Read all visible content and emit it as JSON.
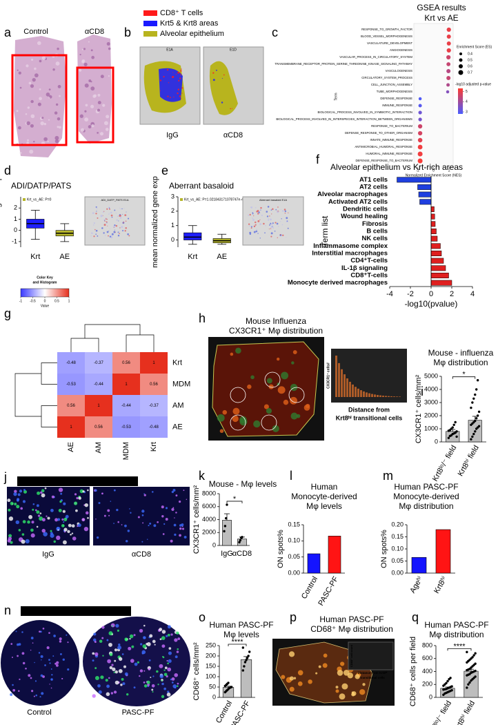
{
  "figure": {
    "a": {
      "letter": "a",
      "captions": [
        "Control",
        "αCD8"
      ]
    },
    "b": {
      "letter": "b",
      "legend": [
        {
          "name": "CD8⁺ T cells",
          "color": "#ff1a1a"
        },
        {
          "name": "Krt5 & Krt8 areas",
          "color": "#1a1aff"
        },
        {
          "name": "Alveolar epithelium",
          "color": "#b8b41e"
        }
      ],
      "tags": [
        "E1A",
        "E1D"
      ],
      "captions": [
        "IgG",
        "αCD8"
      ]
    },
    "h": {
      "letter": "h",
      "title": [
        "Mouse Influenza",
        "CX3CR1⁺ Mφ distribution"
      ],
      "inset_ylabel": "CX3CR1⁺ cells#",
      "inset_xlabel": [
        "Distance from",
        "Krt8ʰⁱ transitional cells"
      ]
    },
    "j": {
      "letter": "j",
      "stains": [
        {
          "name": "DAPI",
          "color": "#3b6cff"
        },
        {
          "name": "KRT8",
          "color": "#c86cff"
        },
        {
          "name": "KRT5",
          "color": "#2ee86a"
        },
        {
          "name": "CX3CR1",
          "color": "#ffffff"
        }
      ],
      "captions": [
        "IgG",
        "αCD8"
      ]
    },
    "n": {
      "letter": "n",
      "stains": [
        {
          "name": "DAPI",
          "color": "#3b6cff"
        },
        {
          "name": "KRT8",
          "color": "#c86cff"
        },
        {
          "name": "KRT5",
          "color": "#2ee86a"
        },
        {
          "name": "CD68",
          "color": "#ffffff"
        }
      ],
      "captions": [
        "Control",
        "PASC-PF"
      ]
    },
    "p": {
      "letter": "p",
      "title": [
        "Human PASC-PF",
        "CD68⁺ Mφ distribution"
      ],
      "inset_ylabel": "CD68⁺ cell count",
      "inset_xlabel": [
        "Distance from Krt8ʰⁱ",
        "transitional cells"
      ]
    }
  },
  "chart_data": [
    {
      "type": "dotplot",
      "letter": "c",
      "title": [
        "GSEA results",
        "Krt vs AE"
      ],
      "ylabel": "Term",
      "xlabel": "Normalized Enrichment Score (NES)",
      "categories": [
        "RESPONSE_TO_GROWTH_FACTOR",
        "BLOOD_VESSEL_MORPHOGENESIS",
        "VASCULATURE_DEVELOPMENT",
        "ANGIOGENESIS",
        "VASCULAR_PROCESS_IN_CIRCULATORY_SYSTEM",
        "TRANSMEMBRANE_RECEPTOR_PROTEIN_SERINE_THREONINE_KINASE_SIGNALING_PATHWAY",
        "VASCULOGENESIS",
        "CIRCULATORY_SYSTEM_PROCESS",
        "CELL_JUNCTION_ASSEMBLY",
        "TUBE_MORPHOGENESIS",
        "DEFENSE_RESPONSE",
        "IMMUNE_RESPONSE",
        "BIOLOGICAL_PROCESS_INVOLVED_IN_SYMBIOTIC_INTERACTION",
        "BIOLOGICAL_PROCESS_INVOLVED_IN_INTERSPECIES_INTERACTION_BETWEEN_ORGANISMS",
        "RESPONSE_TO_BACTERIUM",
        "DEFENSE_RESPONSE_TO_OTHER_ORGANISM",
        "INNATE_IMMUNE_RESPONSE",
        "ANTIMICROBIAL_HUMORAL_RESPONSE",
        "HUMORAL_IMMUNE_RESPONSE",
        "DEFENSE_RESPONSE_TO_BACTERIUM"
      ],
      "values": [
        1.95,
        1.95,
        1.95,
        1.95,
        1.9,
        1.9,
        1.9,
        1.9,
        1.85,
        1.8,
        -1.7,
        -1.7,
        -1.7,
        -1.7,
        -1.7,
        -1.7,
        -1.7,
        -1.7,
        -1.7,
        -1.7
      ],
      "sizes": [
        0.62,
        0.6,
        0.6,
        0.62,
        0.62,
        0.58,
        0.6,
        0.6,
        0.5,
        0.45,
        0.45,
        0.5,
        0.52,
        0.52,
        0.62,
        0.62,
        0.65,
        0.68,
        0.7,
        0.7
      ],
      "neg_log10_padj": [
        5.0,
        5.0,
        5.0,
        5.0,
        4.6,
        4.5,
        4.3,
        4.5,
        4.2,
        3.6,
        2.9,
        3.0,
        3.3,
        3.4,
        4.6,
        4.7,
        4.9,
        5.1,
        5.1,
        5.2
      ],
      "xlim": [
        -2.5,
        2.5
      ],
      "xticks": [
        -2,
        0,
        2
      ],
      "size_legend": {
        "title": "Enrichment Score (ES)",
        "values": [
          0.4,
          0.5,
          0.6,
          0.7
        ]
      },
      "color_legend": {
        "title": "-log10 adjusted p-value",
        "ticks": [
          3,
          4,
          5
        ],
        "lim": [
          2.8,
          5.3
        ],
        "colors": [
          "#4a5cff",
          "#ff3b2f"
        ]
      }
    },
    {
      "type": "box",
      "letter": "d",
      "title": "ADI/DATP/PATS",
      "ylabel": "mean normalized gene exp",
      "legend": "Krt_vs_AE: P=0",
      "image_tag": "ADI_DATP_PATS E1A",
      "categories": [
        "Krt",
        "AE"
      ],
      "colors": [
        "#1f1fff",
        "#b5b52a"
      ],
      "q1": [
        0.2,
        -0.5
      ],
      "median": [
        0.6,
        -0.25
      ],
      "q3": [
        1.0,
        0
      ],
      "whisker_low": [
        -0.8,
        -1
      ],
      "whisker_high": [
        1.8,
        0.6
      ],
      "ylim": [
        -1.5,
        3
      ],
      "yticks": [
        -1,
        0,
        1,
        2
      ]
    },
    {
      "type": "box",
      "letter": "e",
      "title": "Aberrant basaloid",
      "ylabel": "mean normalized gene exp",
      "legend": "Krt_vs_AE: P=1.021843171078747e-49",
      "image_tag": "Aberrant basaloid E1A",
      "categories": [
        "Krt",
        "AE"
      ],
      "colors": [
        "#1f1fff",
        "#b5b52a"
      ],
      "q1": [
        0,
        -0.2
      ],
      "median": [
        0.2,
        -0.05
      ],
      "q3": [
        0.5,
        0.1
      ],
      "whisker_low": [
        -0.3,
        -0.3
      ],
      "whisker_high": [
        1.0,
        0.4
      ],
      "ylim": [
        -0.5,
        3
      ],
      "yticks": [
        0,
        1,
        2,
        3
      ]
    },
    {
      "type": "hbar",
      "letter": "f",
      "title": "Alveolar epithelium vs Krt-rich areas",
      "ylabel": "Term list",
      "xlabel": "-log10(pvalue)",
      "categories": [
        "AT1 cells",
        "AT2 cells",
        "Alveolar macrophages",
        "Activated AT2 cells",
        "Dendritic cells",
        "Wound healing",
        "Fibrosis",
        "B cells",
        "NK cells",
        "Inflammasome complex",
        "Interstitial macrophages",
        "CD4⁺T-cells",
        "IL-1β signaling",
        "CD8⁺T-cells",
        "Monocyte derived macrophages"
      ],
      "values": [
        -3.3,
        -1.3,
        -1.2,
        -1.1,
        0.3,
        0.35,
        0.4,
        0.5,
        0.6,
        0.9,
        1.0,
        1.2,
        1.4,
        1.7,
        2.0
      ],
      "color_negative": "#1f3fdf",
      "color_positive": "#df1f1f",
      "xlim": [
        -4,
        4
      ],
      "xticks": [
        -4,
        -2,
        0,
        2,
        4
      ]
    },
    {
      "type": "heatmap",
      "letter": "g",
      "rows": [
        "Krt",
        "MDM",
        "AM",
        "AE"
      ],
      "columns": [
        "AE",
        "AM",
        "MDM",
        "Krt"
      ],
      "values": [
        [
          -0.48,
          -0.37,
          0.56,
          1
        ],
        [
          -0.53,
          -0.44,
          1,
          0.56
        ],
        [
          0.56,
          1,
          -0.44,
          -0.37
        ],
        [
          1,
          0.56,
          -0.53,
          -0.48
        ]
      ],
      "colors": [
        "#3a3aff",
        "#ffffff",
        "#e6301e"
      ],
      "clim": [
        -1,
        1
      ],
      "colorkey_title": [
        "Color Key",
        "and Histogram"
      ],
      "colorkey_label": "Value",
      "colorkey_ticks": [
        -1,
        -0.5,
        0,
        0.5,
        1
      ]
    },
    {
      "type": "bar",
      "letter": "i",
      "title": [
        "Mouse - influenza",
        "Mφ distribution"
      ],
      "ylabel": "CX3CR1⁺ cells/mm²",
      "categories": [
        "Krt8ˡᵒ/⁻ field",
        "Krt8ʰⁱ field"
      ],
      "values": [
        800,
        1650
      ],
      "errors": [
        150,
        300
      ],
      "color": "#bdbdbd",
      "points": [
        [
          300,
          450,
          500,
          600,
          650,
          700,
          800,
          850,
          900,
          1000,
          1100,
          1300,
          1500,
          400
        ],
        [
          200,
          400,
          600,
          800,
          1000,
          1100,
          1200,
          1300,
          1400,
          1500,
          1600,
          1800,
          2000,
          2300,
          2600,
          3000,
          3300,
          3600,
          4000,
          4700
        ]
      ],
      "sig": "*",
      "ylim": [
        0,
        5000
      ],
      "yticks": [
        0,
        1000,
        2000,
        3000,
        4000,
        5000
      ]
    },
    {
      "type": "bar",
      "letter": "k",
      "title": [
        "Mouse - Mφ levels"
      ],
      "ylabel": "CX3CR1⁺ cells/mm²",
      "categories": [
        "IgG",
        "αCD8"
      ],
      "values": [
        3900,
        1000
      ],
      "errors": [
        1000,
        300
      ],
      "color": "#bdbdbd",
      "points": [
        [
          2200,
          3000,
          4200,
          6300
        ],
        [
          500,
          800,
          1200,
          1300
        ]
      ],
      "sig": "*",
      "ylim": [
        0,
        8000
      ],
      "yticks": [
        0,
        2000,
        4000,
        6000,
        8000
      ]
    },
    {
      "type": "bar",
      "letter": "l",
      "title": [
        "Human",
        "Monocyte-derived",
        "Mφ levels"
      ],
      "ylabel": "ON spots%",
      "categories": [
        "Control",
        "PASC-PF"
      ],
      "values": [
        0.06,
        0.115
      ],
      "colors": [
        "#1414ff",
        "#ff1414"
      ],
      "ylim": [
        0,
        0.15
      ],
      "yticks": [
        {
          "value": 0,
          "label": "0.00"
        },
        0.05,
        {
          "value": 0.1,
          "label": "0.10"
        },
        0.15
      ]
    },
    {
      "type": "bar",
      "letter": "m",
      "title": [
        "Human PASC-PF",
        "Monocyte-derived",
        "Mφ distribution"
      ],
      "ylabel": "ON spots%",
      "categories": [
        "Ageʰⁱ",
        "Krt8ʰⁱ"
      ],
      "values": [
        0.065,
        0.18
      ],
      "colors": [
        "#1414ff",
        "#ff1414"
      ],
      "ylim": [
        0,
        0.2
      ],
      "yticks": [
        {
          "value": 0,
          "label": "0.00"
        },
        0.05,
        {
          "value": 0.1,
          "label": "0.10"
        },
        0.15,
        {
          "value": 0.2,
          "label": "0.20"
        }
      ]
    },
    {
      "type": "bar",
      "letter": "o",
      "title": [
        "Human PASC-PF",
        "Mφ levels"
      ],
      "ylabel": "CD68⁺ cells/mm²",
      "categories": [
        "Control",
        "PASC-PF"
      ],
      "values": [
        48,
        182
      ],
      "errors": [
        6,
        15
      ],
      "color": "#bdbdbd",
      "points": [
        [
          25,
          30,
          35,
          40,
          45,
          48,
          50,
          55,
          60,
          65,
          70
        ],
        [
          130,
          150,
          170,
          180,
          190,
          200,
          220,
          240
        ]
      ],
      "sig": "****",
      "ylim": [
        0,
        250
      ],
      "yticks": [
        0,
        50,
        100,
        150,
        200,
        250
      ]
    },
    {
      "type": "bar",
      "letter": "q",
      "title": [
        "Human PASC-PF",
        "Mφ distribution"
      ],
      "ylabel": "CD68⁺ cells per field",
      "categories": [
        "Krt8ˡᵒ/⁻ field",
        "Krt8ʰⁱ field"
      ],
      "values": [
        140,
        405
      ],
      "errors": [
        20,
        30
      ],
      "color": "#bdbdbd",
      "points": [
        [
          40,
          60,
          70,
          80,
          90,
          100,
          110,
          120,
          125,
          130,
          140,
          150,
          160,
          170,
          180,
          200,
          220,
          250,
          280,
          300
        ],
        [
          150,
          200,
          230,
          260,
          280,
          300,
          320,
          340,
          350,
          360,
          380,
          390,
          400,
          410,
          420,
          430,
          440,
          460,
          480,
          500,
          520,
          540,
          560,
          580,
          600,
          620,
          650,
          680,
          700,
          560
        ]
      ],
      "sig": "****",
      "ylim": [
        0,
        800
      ],
      "yticks": [
        0,
        200,
        400,
        600,
        800
      ]
    }
  ]
}
